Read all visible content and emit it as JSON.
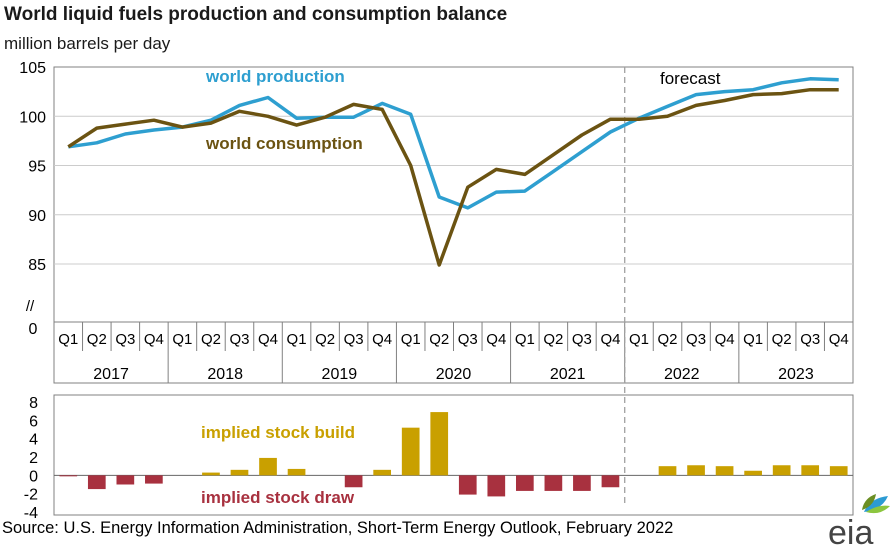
{
  "chart_data": [
    {
      "type": "line",
      "title": "World liquid fuels production and consumption balance",
      "subtitle": "million barrels per day",
      "ylim": [
        85,
        105
      ],
      "yticks": [
        "105",
        "100",
        "95",
        "90",
        "85"
      ],
      "axis_break": "//",
      "axis_zero": "0",
      "quarters": [
        "Q1",
        "Q2",
        "Q3",
        "Q4",
        "Q1",
        "Q2",
        "Q3",
        "Q4",
        "Q1",
        "Q2",
        "Q3",
        "Q4",
        "Q1",
        "Q2",
        "Q3",
        "Q4",
        "Q1",
        "Q2",
        "Q3",
        "Q4",
        "Q1",
        "Q2",
        "Q3",
        "Q4",
        "Q1",
        "Q2",
        "Q3",
        "Q4"
      ],
      "years": [
        "2017",
        "2018",
        "2019",
        "2020",
        "2021",
        "2022",
        "2023"
      ],
      "forecast_label": "forecast",
      "series": [
        {
          "name": "world production",
          "color": "#2e9fd0",
          "values": [
            96.9,
            97.3,
            98.2,
            98.6,
            98.9,
            99.6,
            101.1,
            101.9,
            99.8,
            99.9,
            99.9,
            101.3,
            100.2,
            91.8,
            90.7,
            92.3,
            92.4,
            94.4,
            96.4,
            98.4,
            99.8,
            101.0,
            102.2,
            102.5,
            102.7,
            103.4,
            103.8,
            103.7
          ]
        },
        {
          "name": "world consumption",
          "color": "#6b5312",
          "values": [
            96.9,
            98.8,
            99.2,
            99.6,
            98.9,
            99.3,
            100.5,
            100.0,
            99.1,
            99.9,
            101.2,
            100.7,
            95.0,
            84.9,
            92.8,
            94.6,
            94.1,
            96.1,
            98.1,
            99.7,
            99.7,
            100.0,
            101.1,
            101.6,
            102.2,
            102.3,
            102.7,
            102.7
          ]
        }
      ]
    },
    {
      "type": "bar",
      "ylim": [
        -4,
        8
      ],
      "yticks": [
        "8",
        "6",
        "4",
        "2",
        "0",
        "-2",
        "-4"
      ],
      "build_label": "implied stock  build",
      "draw_label": "implied stock draw",
      "build_color": "#c9a000",
      "draw_color": "#a8313f",
      "values": [
        -0.1,
        -1.5,
        -1.0,
        -0.9,
        0.0,
        0.3,
        0.6,
        1.9,
        0.7,
        0.0,
        -1.3,
        0.6,
        5.2,
        6.9,
        -2.1,
        -2.3,
        -1.7,
        -1.7,
        -1.7,
        -1.3,
        0.0,
        1.0,
        1.1,
        1.0,
        0.5,
        1.1,
        1.1,
        1.0
      ]
    }
  ],
  "source": "Source: U.S. Energy Information Administration, Short-Term Energy Outlook, February 2022",
  "logo_text": "eia",
  "colors": {
    "grid": "#cccccc",
    "axis": "#808080",
    "forecast_line": "#a0a0a0"
  }
}
